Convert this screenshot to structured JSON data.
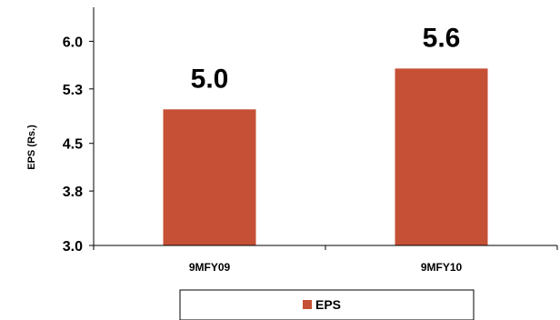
{
  "chart_data": {
    "type": "bar",
    "title": "",
    "xlabel": "",
    "ylabel": "EPS (Rs.)",
    "categories": [
      "9MFY09",
      "9MFY10"
    ],
    "series": [
      {
        "name": "EPS",
        "values": [
          5.0,
          5.6
        ],
        "data_labels": [
          "5.0",
          "5.6"
        ],
        "color": "#C55035"
      }
    ],
    "ylim": [
      3.0,
      6.5
    ],
    "yticks": [
      3.0,
      3.8,
      4.5,
      5.3,
      6.0
    ],
    "ytick_labels": [
      "3.0",
      "3.8",
      "4.5",
      "5.3",
      "6.0"
    ],
    "grid": false,
    "legend": {
      "placement": "bottom",
      "entries": [
        "EPS"
      ]
    }
  }
}
